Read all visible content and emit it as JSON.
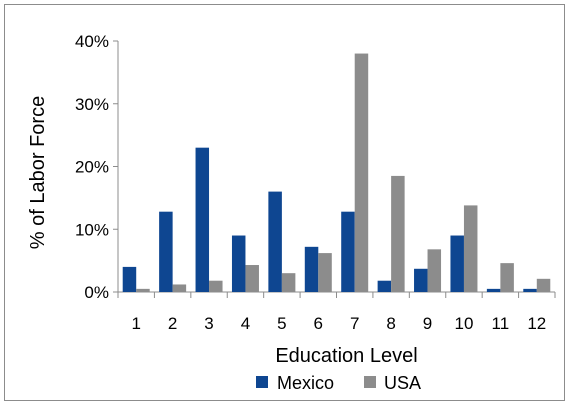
{
  "chart_data": {
    "type": "bar",
    "categories": [
      "1",
      "2",
      "3",
      "4",
      "5",
      "6",
      "7",
      "8",
      "9",
      "10",
      "11",
      "12"
    ],
    "series": [
      {
        "name": "Mexico",
        "color": "#0e4691",
        "values": [
          4.0,
          12.8,
          23.0,
          9.0,
          16.0,
          7.2,
          12.8,
          1.8,
          3.7,
          9.0,
          0.5,
          0.5
        ]
      },
      {
        "name": "USA",
        "color": "#8c8c8c",
        "values": [
          0.5,
          1.2,
          1.8,
          4.3,
          3.0,
          6.2,
          38.0,
          18.5,
          6.8,
          13.8,
          4.6,
          2.1
        ]
      }
    ],
    "xlabel": "Education Level",
    "ylabel": "% of Labor Force",
    "ylim": [
      0,
      40
    ],
    "yticks": [
      0,
      10,
      20,
      30,
      40
    ],
    "ytick_labels": [
      "0%",
      "10%",
      "20%",
      "30%",
      "40%"
    ],
    "grid": false,
    "legend_position": "bottom"
  }
}
